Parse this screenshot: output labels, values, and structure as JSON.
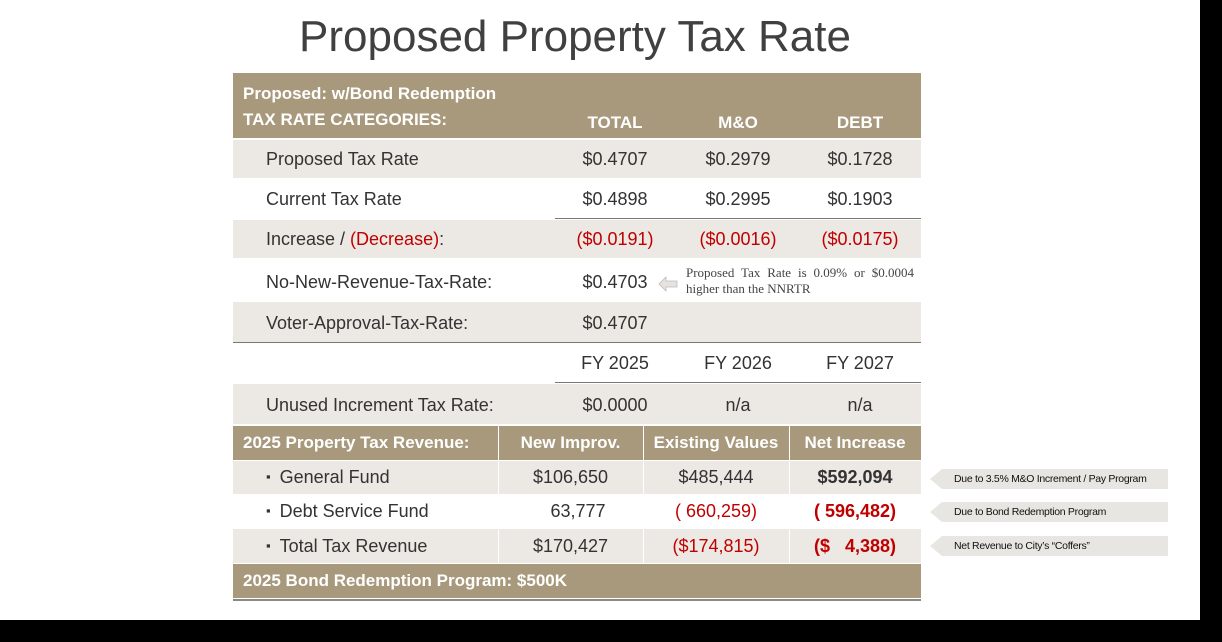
{
  "title": "Proposed Property Tax Rate",
  "rate_table": {
    "header": {
      "label_lines": [
        "Proposed: w/Bond Redemption",
        "TAX RATE CATEGORIES:"
      ],
      "columns": [
        "TOTAL",
        "M&O",
        "DEBT"
      ]
    },
    "rows": [
      {
        "label": "Proposed Tax Rate",
        "values": [
          "$0.4707",
          "$0.2979",
          "$0.1728"
        ]
      },
      {
        "label": "Current Tax Rate",
        "values": [
          "$0.4898",
          "$0.2995",
          "$0.1903"
        ]
      },
      {
        "label": "Increase / ",
        "label_red": "(Decrease)",
        "label_end": ":",
        "values": [
          "($0.0191)",
          "($0.0016)",
          "($0.0175)"
        ]
      },
      {
        "label": "No-New-Revenue-Tax-Rate:",
        "values": [
          "$0.4703"
        ],
        "note": "Proposed Tax Rate is 0.09% or $0.0004 higher than the NNRTR"
      },
      {
        "label": "Voter-Approval-Tax-Rate:",
        "values": [
          "$0.4707"
        ]
      }
    ],
    "fiscal_years": [
      "FY 2025",
      "FY 2026",
      "FY 2027"
    ],
    "unused_increment": {
      "label": "Unused Increment Tax Rate:",
      "values": [
        "$0.0000",
        "n/a",
        "n/a"
      ]
    }
  },
  "revenue_table": {
    "header": [
      "2025 Property Tax Revenue:",
      "New Improv.",
      "Existing Values",
      "Net Increase"
    ],
    "rows": [
      {
        "label": "General Fund",
        "values": [
          "$106,650",
          "$485,444",
          "$592,094"
        ],
        "note": "Due to 3.5% M&O Increment / Pay Program"
      },
      {
        "label": "Debt Service Fund",
        "values": [
          "63,777",
          "( 660,259)",
          "( 596,482)"
        ],
        "note": "Due to Bond Redemption Program"
      },
      {
        "label": "Total Tax Revenue",
        "values": [
          "$170,427",
          "($174,815)",
          "($   4,388)"
        ],
        "note": "Net Revenue to City’s “Coffers”"
      }
    ],
    "footer": "2025 Bond Redemption Program: $500K"
  }
}
